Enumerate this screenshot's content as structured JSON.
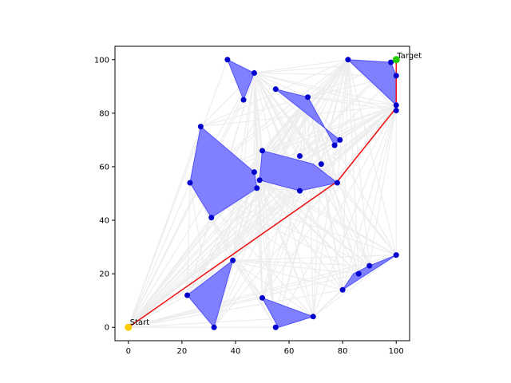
{
  "chart_data": {
    "type": "scatter",
    "title": "",
    "xlabel": "",
    "ylabel": "",
    "xlim": [
      -5,
      105
    ],
    "ylim": [
      -5,
      105
    ],
    "xticks": [
      0,
      20,
      40,
      60,
      80,
      100
    ],
    "yticks": [
      0,
      20,
      40,
      60,
      80,
      100
    ],
    "grid": false,
    "colors": {
      "obstacle_fill": "#8080ff",
      "obstacle_edge": "#5050ff",
      "vertex": "#0000cc",
      "graph_edge": "#ededed",
      "path": "#ee1111",
      "start": "#ffcc00",
      "target": "#22cc00"
    },
    "start": {
      "label": "Start",
      "x": 0,
      "y": 0
    },
    "target": {
      "label": "Target",
      "x": 100,
      "y": 100
    },
    "path": [
      [
        0,
        0
      ],
      [
        78,
        54.5
      ],
      [
        100,
        82
      ],
      [
        100,
        100
      ]
    ],
    "obstacles": [
      [
        [
          37,
          100
        ],
        [
          47,
          95
        ],
        [
          43,
          85
        ]
      ],
      [
        [
          55,
          89
        ],
        [
          67,
          86
        ],
        [
          77,
          68
        ],
        [
          79,
          70
        ]
      ],
      [
        [
          82,
          100
        ],
        [
          98,
          99
        ],
        [
          100,
          94
        ],
        [
          100,
          83
        ]
      ],
      [
        [
          27,
          75
        ],
        [
          23,
          54
        ],
        [
          31,
          41
        ],
        [
          48,
          52
        ],
        [
          47,
          58
        ]
      ],
      [
        [
          50,
          66
        ],
        [
          69,
          61
        ],
        [
          78,
          54
        ],
        [
          64,
          51
        ],
        [
          49,
          55
        ]
      ],
      [
        [
          22,
          12
        ],
        [
          32,
          0
        ],
        [
          39,
          25
        ]
      ],
      [
        [
          50,
          11
        ],
        [
          56,
          0
        ],
        [
          69,
          4
        ]
      ],
      [
        [
          80,
          14
        ],
        [
          100,
          27
        ],
        [
          90,
          23
        ],
        [
          84,
          20
        ]
      ]
    ],
    "vertices": [
      [
        37,
        100
      ],
      [
        47,
        95
      ],
      [
        43,
        85
      ],
      [
        55,
        89
      ],
      [
        67,
        86
      ],
      [
        77,
        68
      ],
      [
        79,
        70
      ],
      [
        82,
        100
      ],
      [
        98,
        99
      ],
      [
        100,
        94
      ],
      [
        100,
        83
      ],
      [
        100,
        81
      ],
      [
        27,
        75
      ],
      [
        23,
        54
      ],
      [
        31,
        41
      ],
      [
        48,
        52
      ],
      [
        47,
        58
      ],
      [
        50,
        66
      ],
      [
        64,
        64
      ],
      [
        72,
        61
      ],
      [
        78,
        54
      ],
      [
        64,
        51
      ],
      [
        49,
        55
      ],
      [
        22,
        12
      ],
      [
        32,
        0
      ],
      [
        39,
        25
      ],
      [
        50,
        11
      ],
      [
        55,
        0
      ],
      [
        69,
        4
      ],
      [
        80,
        14
      ],
      [
        86,
        20
      ],
      [
        90,
        23
      ],
      [
        100,
        27
      ]
    ]
  }
}
